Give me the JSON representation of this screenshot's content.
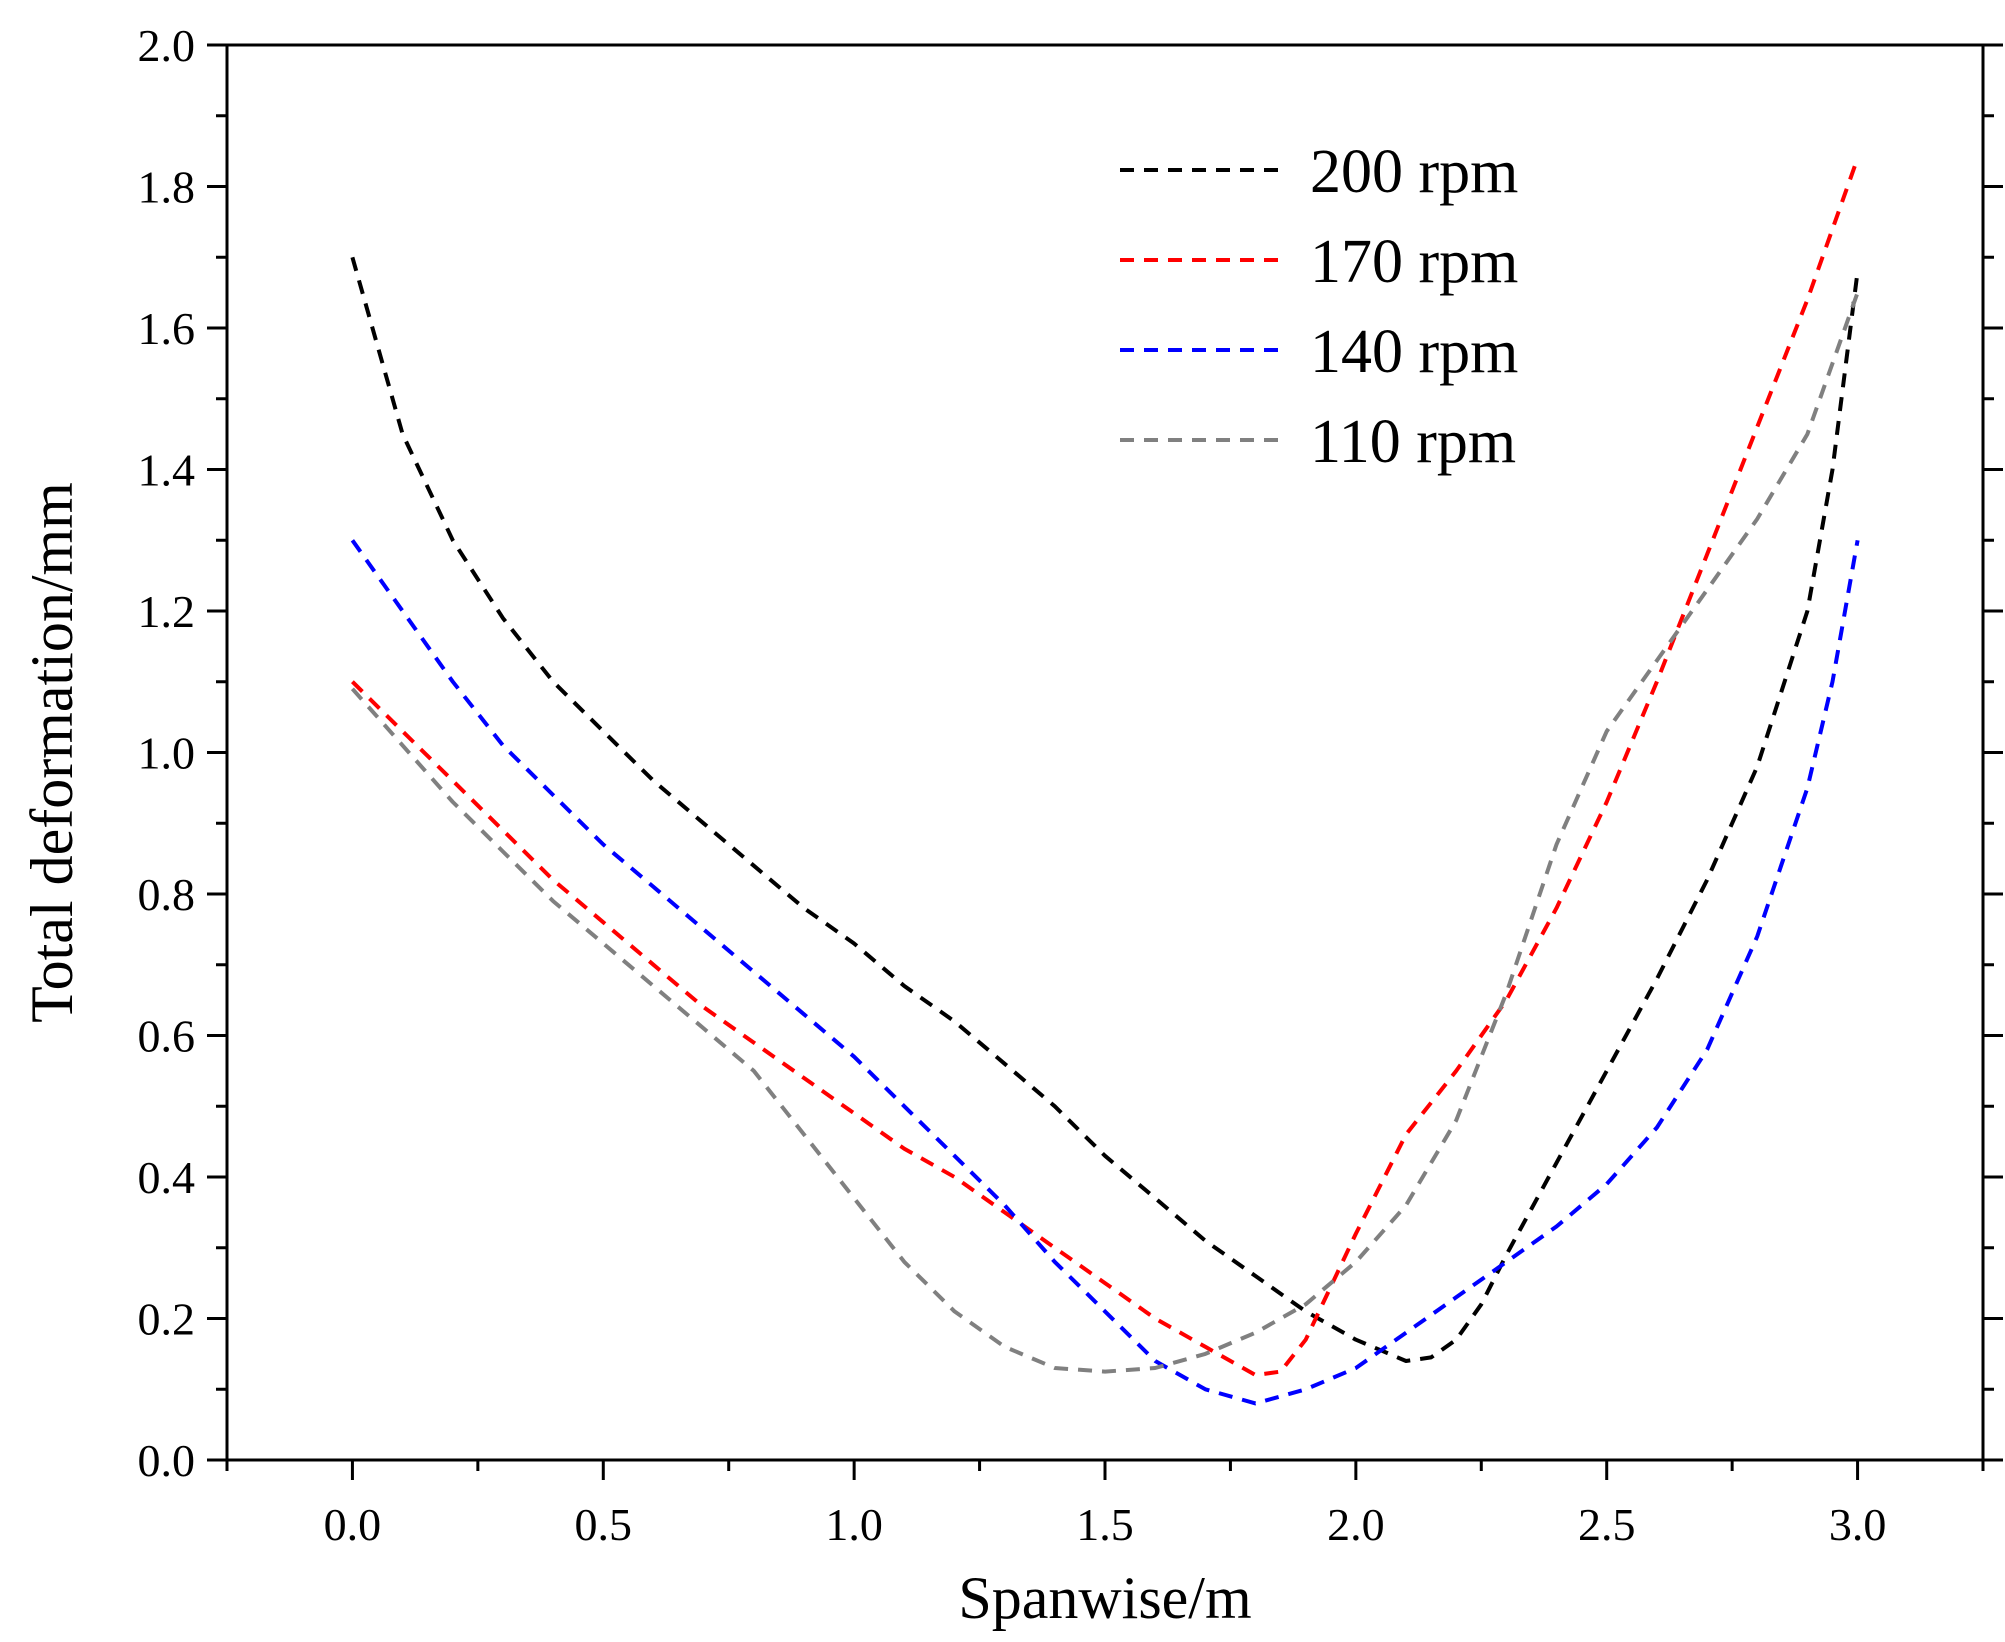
{
  "chart_data": {
    "type": "line",
    "title": "",
    "xlabel": "Spanwise/m",
    "ylabel": "Total deformation/mm",
    "xlim": [
      -0.25,
      3.25
    ],
    "ylim": [
      0.0,
      2.0
    ],
    "xticks": [
      0.0,
      0.5,
      1.0,
      1.5,
      2.0,
      2.5,
      3.0
    ],
    "xtick_labels": [
      "0.0",
      "0.5",
      "1.0",
      "1.5",
      "2.0",
      "2.5",
      "3.0"
    ],
    "yticks": [
      0.0,
      0.2,
      0.4,
      0.6,
      0.8,
      1.0,
      1.2,
      1.4,
      1.6,
      1.8,
      2.0
    ],
    "ytick_labels": [
      "0.0",
      "0.2",
      "0.4",
      "0.6",
      "0.8",
      "1.0",
      "1.2",
      "1.4",
      "1.6",
      "1.8",
      "2.0"
    ],
    "grid": false,
    "legend_position": "top-right",
    "line_style": "dashed",
    "series": [
      {
        "name": "200 rpm",
        "color": "#000000",
        "points": [
          [
            0.0,
            1.7
          ],
          [
            0.1,
            1.45
          ],
          [
            0.2,
            1.3
          ],
          [
            0.3,
            1.19
          ],
          [
            0.4,
            1.1
          ],
          [
            0.5,
            1.03
          ],
          [
            0.6,
            0.96
          ],
          [
            0.7,
            0.9
          ],
          [
            0.8,
            0.84
          ],
          [
            0.9,
            0.78
          ],
          [
            1.0,
            0.73
          ],
          [
            1.1,
            0.67
          ],
          [
            1.2,
            0.62
          ],
          [
            1.3,
            0.56
          ],
          [
            1.4,
            0.5
          ],
          [
            1.5,
            0.43
          ],
          [
            1.6,
            0.37
          ],
          [
            1.7,
            0.31
          ],
          [
            1.8,
            0.26
          ],
          [
            1.9,
            0.21
          ],
          [
            2.0,
            0.17
          ],
          [
            2.05,
            0.155
          ],
          [
            2.1,
            0.14
          ],
          [
            2.15,
            0.145
          ],
          [
            2.2,
            0.17
          ],
          [
            2.25,
            0.22
          ],
          [
            2.3,
            0.29
          ],
          [
            2.4,
            0.42
          ],
          [
            2.5,
            0.55
          ],
          [
            2.6,
            0.68
          ],
          [
            2.7,
            0.82
          ],
          [
            2.8,
            0.98
          ],
          [
            2.9,
            1.2
          ],
          [
            2.95,
            1.4
          ],
          [
            3.0,
            1.68
          ]
        ]
      },
      {
        "name": "170 rpm",
        "color": "#ff0000",
        "points": [
          [
            0.0,
            1.1
          ],
          [
            0.1,
            1.03
          ],
          [
            0.2,
            0.96
          ],
          [
            0.3,
            0.89
          ],
          [
            0.4,
            0.82
          ],
          [
            0.5,
            0.76
          ],
          [
            0.6,
            0.7
          ],
          [
            0.7,
            0.64
          ],
          [
            0.8,
            0.59
          ],
          [
            0.9,
            0.54
          ],
          [
            1.0,
            0.49
          ],
          [
            1.1,
            0.44
          ],
          [
            1.2,
            0.4
          ],
          [
            1.3,
            0.35
          ],
          [
            1.4,
            0.3
          ],
          [
            1.5,
            0.25
          ],
          [
            1.6,
            0.2
          ],
          [
            1.7,
            0.16
          ],
          [
            1.8,
            0.12
          ],
          [
            1.85,
            0.125
          ],
          [
            1.9,
            0.17
          ],
          [
            2.0,
            0.32
          ],
          [
            2.1,
            0.46
          ],
          [
            2.2,
            0.55
          ],
          [
            2.3,
            0.65
          ],
          [
            2.4,
            0.78
          ],
          [
            2.5,
            0.93
          ],
          [
            2.6,
            1.1
          ],
          [
            2.7,
            1.28
          ],
          [
            2.8,
            1.46
          ],
          [
            2.9,
            1.64
          ],
          [
            3.0,
            1.84
          ]
        ]
      },
      {
        "name": "140 rpm",
        "color": "#0000ff",
        "points": [
          [
            0.0,
            1.3
          ],
          [
            0.1,
            1.2
          ],
          [
            0.2,
            1.1
          ],
          [
            0.3,
            1.01
          ],
          [
            0.4,
            0.94
          ],
          [
            0.5,
            0.87
          ],
          [
            0.6,
            0.81
          ],
          [
            0.7,
            0.75
          ],
          [
            0.8,
            0.69
          ],
          [
            0.9,
            0.63
          ],
          [
            1.0,
            0.57
          ],
          [
            1.1,
            0.5
          ],
          [
            1.2,
            0.43
          ],
          [
            1.3,
            0.36
          ],
          [
            1.4,
            0.28
          ],
          [
            1.5,
            0.21
          ],
          [
            1.6,
            0.14
          ],
          [
            1.7,
            0.1
          ],
          [
            1.8,
            0.08
          ],
          [
            1.9,
            0.1
          ],
          [
            2.0,
            0.13
          ],
          [
            2.1,
            0.18
          ],
          [
            2.2,
            0.23
          ],
          [
            2.3,
            0.28
          ],
          [
            2.4,
            0.33
          ],
          [
            2.5,
            0.39
          ],
          [
            2.6,
            0.47
          ],
          [
            2.7,
            0.58
          ],
          [
            2.8,
            0.74
          ],
          [
            2.9,
            0.95
          ],
          [
            2.95,
            1.1
          ],
          [
            3.0,
            1.3
          ]
        ]
      },
      {
        "name": "110 rpm",
        "color": "#808080",
        "points": [
          [
            0.0,
            1.09
          ],
          [
            0.1,
            1.01
          ],
          [
            0.2,
            0.93
          ],
          [
            0.3,
            0.86
          ],
          [
            0.4,
            0.79
          ],
          [
            0.5,
            0.73
          ],
          [
            0.6,
            0.67
          ],
          [
            0.7,
            0.61
          ],
          [
            0.8,
            0.55
          ],
          [
            0.9,
            0.46
          ],
          [
            1.0,
            0.37
          ],
          [
            1.1,
            0.28
          ],
          [
            1.2,
            0.21
          ],
          [
            1.3,
            0.16
          ],
          [
            1.4,
            0.13
          ],
          [
            1.5,
            0.125
          ],
          [
            1.6,
            0.13
          ],
          [
            1.7,
            0.15
          ],
          [
            1.8,
            0.18
          ],
          [
            1.9,
            0.22
          ],
          [
            2.0,
            0.28
          ],
          [
            2.1,
            0.36
          ],
          [
            2.2,
            0.48
          ],
          [
            2.3,
            0.66
          ],
          [
            2.4,
            0.87
          ],
          [
            2.5,
            1.03
          ],
          [
            2.6,
            1.13
          ],
          [
            2.7,
            1.23
          ],
          [
            2.8,
            1.33
          ],
          [
            2.9,
            1.45
          ],
          [
            3.0,
            1.65
          ]
        ]
      }
    ]
  }
}
